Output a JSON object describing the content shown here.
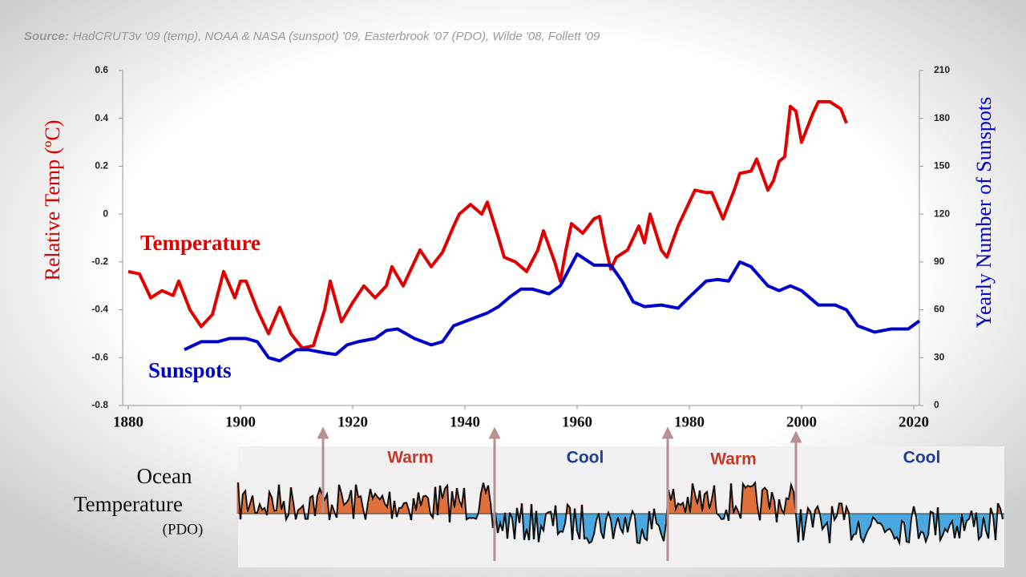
{
  "chart_data": {
    "type": "line",
    "source_label": "Source:",
    "source_text": "HadCRUT3v '09 (temp), NOAA & NASA (sunspot) '09, Easterbrook '07 (PDO), Wilde '08, Follett '09",
    "ylabel": "Relative Temp (ºC)",
    "y2label": "Yearly Number of Sunspots",
    "xlim": [
      1879,
      2021
    ],
    "xticks": [
      1880,
      1900,
      1920,
      1940,
      1960,
      1980,
      2000,
      2020
    ],
    "ylim": [
      -0.8,
      0.6
    ],
    "yticks": [
      0.6,
      0.4,
      0.2,
      0,
      -0.2,
      -0.4,
      -0.6,
      -0.8
    ],
    "y2lim": [
      0,
      210
    ],
    "y2ticks": [
      210,
      180,
      150,
      120,
      90,
      60,
      30,
      0
    ],
    "series": [
      {
        "name": "Temperature",
        "color": "#e00000",
        "x": [
          1880,
          1882,
          1884,
          1886,
          1888,
          1889,
          1891,
          1893,
          1895,
          1897,
          1899,
          1900,
          1901,
          1903,
          1905,
          1907,
          1909,
          1911,
          1913,
          1915,
          1916,
          1918,
          1920,
          1922,
          1924,
          1926,
          1927,
          1929,
          1931,
          1932,
          1934,
          1936,
          1938,
          1939,
          1941,
          1943,
          1944,
          1946,
          1947,
          1949,
          1951,
          1953,
          1954,
          1956,
          1957,
          1958,
          1959,
          1961,
          1963,
          1964,
          1965,
          1966,
          1967,
          1969,
          1971,
          1972,
          1973,
          1975,
          1976,
          1978,
          1980,
          1981,
          1983,
          1984,
          1986,
          1988,
          1989,
          1991,
          1992,
          1994,
          1995,
          1996,
          1997,
          1998,
          1999,
          2000,
          2002,
          2003,
          2005,
          2007,
          2008
        ],
        "values": [
          -0.24,
          -0.25,
          -0.35,
          -0.32,
          -0.34,
          -0.28,
          -0.4,
          -0.47,
          -0.42,
          -0.24,
          -0.35,
          -0.28,
          -0.28,
          -0.4,
          -0.5,
          -0.39,
          -0.5,
          -0.56,
          -0.55,
          -0.4,
          -0.28,
          -0.45,
          -0.37,
          -0.3,
          -0.35,
          -0.3,
          -0.22,
          -0.3,
          -0.2,
          -0.15,
          -0.22,
          -0.16,
          -0.05,
          0.0,
          0.04,
          0.0,
          0.05,
          -0.1,
          -0.18,
          -0.2,
          -0.24,
          -0.15,
          -0.07,
          -0.2,
          -0.28,
          -0.15,
          -0.04,
          -0.08,
          -0.02,
          -0.01,
          -0.13,
          -0.23,
          -0.18,
          -0.15,
          -0.05,
          -0.12,
          0.0,
          -0.15,
          -0.18,
          -0.05,
          0.05,
          0.1,
          0.09,
          0.09,
          -0.02,
          0.1,
          0.17,
          0.18,
          0.23,
          0.1,
          0.14,
          0.22,
          0.24,
          0.45,
          0.43,
          0.3,
          0.42,
          0.47,
          0.47,
          0.44,
          0.38
        ]
      },
      {
        "name": "Sunspots",
        "color": "#0000cc",
        "axis": "y2",
        "x": [
          1890,
          1893,
          1896,
          1898,
          1901,
          1903,
          1905,
          1907,
          1910,
          1912,
          1915,
          1917,
          1919,
          1921,
          1924,
          1926,
          1928,
          1931,
          1934,
          1936,
          1938,
          1941,
          1944,
          1946,
          1948,
          1950,
          1952,
          1955,
          1957,
          1960,
          1963,
          1966,
          1968,
          1970,
          1972,
          1975,
          1978,
          1980,
          1983,
          1985,
          1987,
          1989,
          1991,
          1994,
          1996,
          1998,
          2000,
          2003,
          2006,
          2008,
          2010,
          2013,
          2016,
          2019,
          2021
        ],
        "values": [
          35,
          40,
          40,
          42,
          42,
          40,
          30,
          28,
          35,
          35,
          33,
          32,
          38,
          40,
          42,
          47,
          48,
          42,
          38,
          40,
          50,
          54,
          58,
          62,
          68,
          73,
          73,
          70,
          75,
          95,
          88,
          88,
          78,
          65,
          62,
          63,
          61,
          68,
          78,
          79,
          78,
          90,
          87,
          75,
          72,
          75,
          72,
          63,
          63,
          60,
          50,
          46,
          48,
          48,
          53
        ]
      }
    ],
    "pdo": {
      "title_line1": "Ocean",
      "title_line2": "Temperature",
      "title_line3": "(PDO)",
      "phases": [
        "Warm",
        "Cool",
        "Warm",
        "Cool"
      ]
    }
  }
}
